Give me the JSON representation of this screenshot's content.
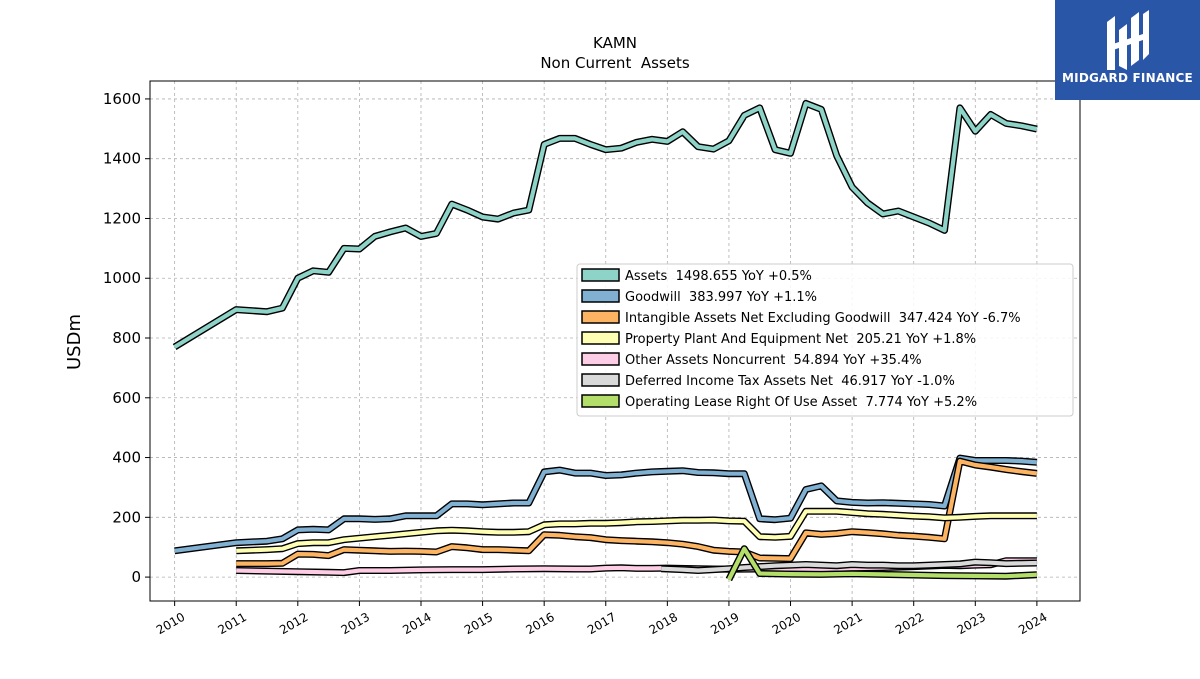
{
  "chart_data": {
    "type": "line",
    "title": "KAMN",
    "subtitle": "Non Current  Assets",
    "ylabel": "USDm",
    "xlim": [
      2009.6,
      2024.7
    ],
    "ylim": [
      -80,
      1660
    ],
    "yticks": [
      0,
      200,
      400,
      600,
      800,
      1000,
      1200,
      1400,
      1600
    ],
    "xticks": [
      "2010",
      "2011",
      "2012",
      "2013",
      "2014",
      "2015",
      "2016",
      "2017",
      "2018",
      "2019",
      "2020",
      "2021",
      "2022",
      "2023",
      "2024"
    ],
    "grid": true,
    "legend_position": "center-right",
    "series": [
      {
        "name": "Assets",
        "legend": "Assets  1498.655 YoY +0.5%",
        "color": "#8dd3c7",
        "points": [
          [
            2010.0,
            770
          ],
          [
            2011.0,
            895
          ],
          [
            2011.5,
            888
          ],
          [
            2011.75,
            900
          ],
          [
            2012.0,
            1000
          ],
          [
            2012.25,
            1025
          ],
          [
            2012.5,
            1020
          ],
          [
            2012.75,
            1100
          ],
          [
            2013.0,
            1098
          ],
          [
            2013.25,
            1140
          ],
          [
            2013.5,
            1155
          ],
          [
            2013.75,
            1168
          ],
          [
            2014.0,
            1140
          ],
          [
            2014.25,
            1150
          ],
          [
            2014.5,
            1248
          ],
          [
            2014.75,
            1228
          ],
          [
            2015.0,
            1205
          ],
          [
            2015.25,
            1198
          ],
          [
            2015.5,
            1218
          ],
          [
            2015.75,
            1228
          ],
          [
            2016.0,
            1448
          ],
          [
            2016.25,
            1468
          ],
          [
            2016.5,
            1468
          ],
          [
            2016.75,
            1448
          ],
          [
            2017.0,
            1430
          ],
          [
            2017.25,
            1435
          ],
          [
            2017.5,
            1455
          ],
          [
            2017.75,
            1465
          ],
          [
            2018.0,
            1458
          ],
          [
            2018.25,
            1490
          ],
          [
            2018.5,
            1440
          ],
          [
            2018.75,
            1432
          ],
          [
            2019.0,
            1460
          ],
          [
            2019.25,
            1545
          ],
          [
            2019.5,
            1570
          ],
          [
            2019.75,
            1430
          ],
          [
            2020.0,
            1418
          ],
          [
            2020.25,
            1585
          ],
          [
            2020.5,
            1565
          ],
          [
            2020.75,
            1410
          ],
          [
            2021.0,
            1305
          ],
          [
            2021.25,
            1252
          ],
          [
            2021.5,
            1215
          ],
          [
            2021.75,
            1225
          ],
          [
            2022.0,
            1205
          ],
          [
            2022.25,
            1185
          ],
          [
            2022.5,
            1160
          ],
          [
            2022.75,
            1570
          ],
          [
            2023.0,
            1492
          ],
          [
            2023.25,
            1548
          ],
          [
            2023.5,
            1518
          ],
          [
            2023.75,
            1510
          ],
          [
            2024.0,
            1499
          ]
        ]
      },
      {
        "name": "Goodwill",
        "legend": "Goodwill  383.997 YoY +1.1%",
        "color": "#80b1d3",
        "points": [
          [
            2010.0,
            88
          ],
          [
            2011.0,
            115
          ],
          [
            2011.5,
            120
          ],
          [
            2011.75,
            128
          ],
          [
            2012.0,
            158
          ],
          [
            2012.25,
            160
          ],
          [
            2012.5,
            158
          ],
          [
            2012.75,
            195
          ],
          [
            2013.0,
            195
          ],
          [
            2013.25,
            193
          ],
          [
            2013.5,
            195
          ],
          [
            2013.75,
            205
          ],
          [
            2014.0,
            205
          ],
          [
            2014.25,
            205
          ],
          [
            2014.5,
            245
          ],
          [
            2014.75,
            245
          ],
          [
            2015.0,
            242
          ],
          [
            2015.25,
            245
          ],
          [
            2015.5,
            248
          ],
          [
            2015.75,
            248
          ],
          [
            2016.0,
            352
          ],
          [
            2016.25,
            358
          ],
          [
            2016.5,
            348
          ],
          [
            2016.75,
            348
          ],
          [
            2017.0,
            340
          ],
          [
            2017.25,
            342
          ],
          [
            2017.5,
            348
          ],
          [
            2017.75,
            352
          ],
          [
            2018.0,
            354
          ],
          [
            2018.25,
            356
          ],
          [
            2018.5,
            350
          ],
          [
            2018.75,
            349
          ],
          [
            2019.0,
            346
          ],
          [
            2019.25,
            346
          ],
          [
            2019.5,
            195
          ],
          [
            2019.75,
            192
          ],
          [
            2020.0,
            197
          ],
          [
            2020.25,
            293
          ],
          [
            2020.5,
            305
          ],
          [
            2020.75,
            255
          ],
          [
            2021.0,
            250
          ],
          [
            2021.25,
            248
          ],
          [
            2021.5,
            249
          ],
          [
            2021.75,
            247
          ],
          [
            2022.0,
            245
          ],
          [
            2022.25,
            243
          ],
          [
            2022.5,
            238
          ],
          [
            2022.75,
            398
          ],
          [
            2023.0,
            390
          ],
          [
            2023.25,
            390
          ],
          [
            2023.5,
            390
          ],
          [
            2023.75,
            388
          ],
          [
            2024.0,
            384
          ]
        ]
      },
      {
        "name": "Intangible Assets Net Excluding Goodwill",
        "legend": "Intangible Assets Net Excluding Goodwill  347.424 YoY -6.7%",
        "color": "#fdb462",
        "points": [
          [
            2011.0,
            45
          ],
          [
            2011.5,
            45
          ],
          [
            2011.75,
            46
          ],
          [
            2012.0,
            77
          ],
          [
            2012.25,
            76
          ],
          [
            2012.5,
            72
          ],
          [
            2012.75,
            92
          ],
          [
            2013.0,
            90
          ],
          [
            2013.25,
            88
          ],
          [
            2013.5,
            86
          ],
          [
            2013.75,
            87
          ],
          [
            2014.0,
            86
          ],
          [
            2014.25,
            84
          ],
          [
            2014.5,
            102
          ],
          [
            2014.75,
            98
          ],
          [
            2015.0,
            92
          ],
          [
            2015.25,
            92
          ],
          [
            2015.5,
            90
          ],
          [
            2015.75,
            88
          ],
          [
            2016.0,
            142
          ],
          [
            2016.25,
            140
          ],
          [
            2016.5,
            135
          ],
          [
            2016.75,
            132
          ],
          [
            2017.0,
            125
          ],
          [
            2017.25,
            122
          ],
          [
            2017.5,
            120
          ],
          [
            2017.75,
            118
          ],
          [
            2018.0,
            115
          ],
          [
            2018.25,
            110
          ],
          [
            2018.5,
            102
          ],
          [
            2018.75,
            90
          ],
          [
            2019.0,
            86
          ],
          [
            2019.25,
            84
          ],
          [
            2019.5,
            64
          ],
          [
            2019.75,
            63
          ],
          [
            2020.0,
            62
          ],
          [
            2020.25,
            148
          ],
          [
            2020.5,
            143
          ],
          [
            2020.75,
            146
          ],
          [
            2021.0,
            152
          ],
          [
            2021.25,
            149
          ],
          [
            2021.5,
            145
          ],
          [
            2021.75,
            140
          ],
          [
            2022.0,
            137
          ],
          [
            2022.25,
            133
          ],
          [
            2022.5,
            128
          ],
          [
            2022.75,
            388
          ],
          [
            2023.0,
            375
          ],
          [
            2023.25,
            368
          ],
          [
            2023.5,
            360
          ],
          [
            2023.75,
            353
          ],
          [
            2024.0,
            347
          ]
        ]
      },
      {
        "name": "Property Plant And Equipment Net",
        "legend": "Property Plant And Equipment Net  205.21 YoY +1.8%",
        "color": "#ffffb3",
        "points": [
          [
            2011.0,
            88
          ],
          [
            2011.5,
            92
          ],
          [
            2011.75,
            95
          ],
          [
            2012.0,
            112
          ],
          [
            2012.25,
            115
          ],
          [
            2012.5,
            115
          ],
          [
            2012.75,
            125
          ],
          [
            2013.0,
            130
          ],
          [
            2013.25,
            135
          ],
          [
            2013.5,
            140
          ],
          [
            2013.75,
            145
          ],
          [
            2014.0,
            150
          ],
          [
            2014.25,
            155
          ],
          [
            2014.5,
            157
          ],
          [
            2014.75,
            155
          ],
          [
            2015.0,
            152
          ],
          [
            2015.25,
            150
          ],
          [
            2015.5,
            150
          ],
          [
            2015.75,
            152
          ],
          [
            2016.0,
            175
          ],
          [
            2016.25,
            178
          ],
          [
            2016.5,
            178
          ],
          [
            2016.75,
            180
          ],
          [
            2017.0,
            180
          ],
          [
            2017.25,
            182
          ],
          [
            2017.5,
            185
          ],
          [
            2017.75,
            186
          ],
          [
            2018.0,
            188
          ],
          [
            2018.25,
            190
          ],
          [
            2018.5,
            190
          ],
          [
            2018.75,
            191
          ],
          [
            2019.0,
            188
          ],
          [
            2019.25,
            187
          ],
          [
            2019.5,
            135
          ],
          [
            2019.75,
            133
          ],
          [
            2020.0,
            136
          ],
          [
            2020.25,
            220
          ],
          [
            2020.5,
            220
          ],
          [
            2020.75,
            220
          ],
          [
            2021.0,
            216
          ],
          [
            2021.25,
            212
          ],
          [
            2021.5,
            210
          ],
          [
            2021.75,
            207
          ],
          [
            2022.0,
            204
          ],
          [
            2022.25,
            202
          ],
          [
            2022.5,
            198
          ],
          [
            2022.75,
            200
          ],
          [
            2023.0,
            203
          ],
          [
            2023.25,
            205
          ],
          [
            2023.5,
            205
          ],
          [
            2023.75,
            205
          ],
          [
            2024.0,
            205
          ]
        ]
      },
      {
        "name": "Other Assets Noncurrent",
        "legend": "Other Assets Noncurrent  54.894 YoY +35.4%",
        "color": "#fccde5",
        "points": [
          [
            2011.0,
            22
          ],
          [
            2011.5,
            20
          ],
          [
            2012.0,
            18
          ],
          [
            2012.5,
            16
          ],
          [
            2012.75,
            15
          ],
          [
            2013.0,
            22
          ],
          [
            2013.5,
            22
          ],
          [
            2014.0,
            24
          ],
          [
            2014.5,
            25
          ],
          [
            2015.0,
            25
          ],
          [
            2015.5,
            27
          ],
          [
            2016.0,
            28
          ],
          [
            2016.5,
            27
          ],
          [
            2016.75,
            27
          ],
          [
            2017.0,
            30
          ],
          [
            2017.25,
            31
          ],
          [
            2017.5,
            29
          ],
          [
            2017.75,
            29
          ],
          [
            2018.0,
            30
          ],
          [
            2018.5,
            28
          ],
          [
            2019.0,
            26
          ],
          [
            2019.5,
            27
          ],
          [
            2020.0,
            28
          ],
          [
            2020.5,
            27
          ],
          [
            2021.0,
            30
          ],
          [
            2021.5,
            32
          ],
          [
            2022.0,
            35
          ],
          [
            2022.25,
            37
          ],
          [
            2022.5,
            39
          ],
          [
            2022.75,
            38
          ],
          [
            2023.0,
            40
          ],
          [
            2023.25,
            41
          ],
          [
            2023.5,
            55
          ],
          [
            2023.75,
            55
          ],
          [
            2024.0,
            55
          ]
        ]
      },
      {
        "name": "Deferred Income Tax Assets Net",
        "legend": "Deferred Income Tax Assets Net  46.917 YoY -1.0%",
        "color": "#d9d9d9",
        "points": [
          [
            2017.9,
            28
          ],
          [
            2018.25,
            25
          ],
          [
            2018.5,
            22
          ],
          [
            2018.75,
            25
          ],
          [
            2019.0,
            28
          ],
          [
            2019.25,
            32
          ],
          [
            2019.5,
            35
          ],
          [
            2019.75,
            38
          ],
          [
            2020.0,
            40
          ],
          [
            2020.25,
            42
          ],
          [
            2020.5,
            40
          ],
          [
            2020.75,
            38
          ],
          [
            2021.0,
            42
          ],
          [
            2021.25,
            40
          ],
          [
            2021.5,
            40
          ],
          [
            2021.75,
            38
          ],
          [
            2022.0,
            38
          ],
          [
            2022.25,
            40
          ],
          [
            2022.5,
            42
          ],
          [
            2022.75,
            44
          ],
          [
            2023.0,
            50
          ],
          [
            2023.25,
            48
          ],
          [
            2023.5,
            45
          ],
          [
            2023.75,
            46
          ],
          [
            2024.0,
            47
          ]
        ]
      },
      {
        "name": "Operating Lease Right Of Use Asset",
        "legend": "Operating Lease Right Of Use Asset  7.774 YoY +5.2%",
        "color": "#b3de69",
        "points": [
          [
            2019.0,
            -8
          ],
          [
            2019.25,
            95
          ],
          [
            2019.5,
            12
          ],
          [
            2020.0,
            10
          ],
          [
            2020.5,
            9
          ],
          [
            2021.0,
            11
          ],
          [
            2021.5,
            9
          ],
          [
            2022.0,
            7
          ],
          [
            2022.5,
            5
          ],
          [
            2023.0,
            4
          ],
          [
            2023.5,
            3
          ],
          [
            2024.0,
            8
          ]
        ]
      }
    ]
  },
  "logo": {
    "text": "MIDGARD FINANCE"
  }
}
